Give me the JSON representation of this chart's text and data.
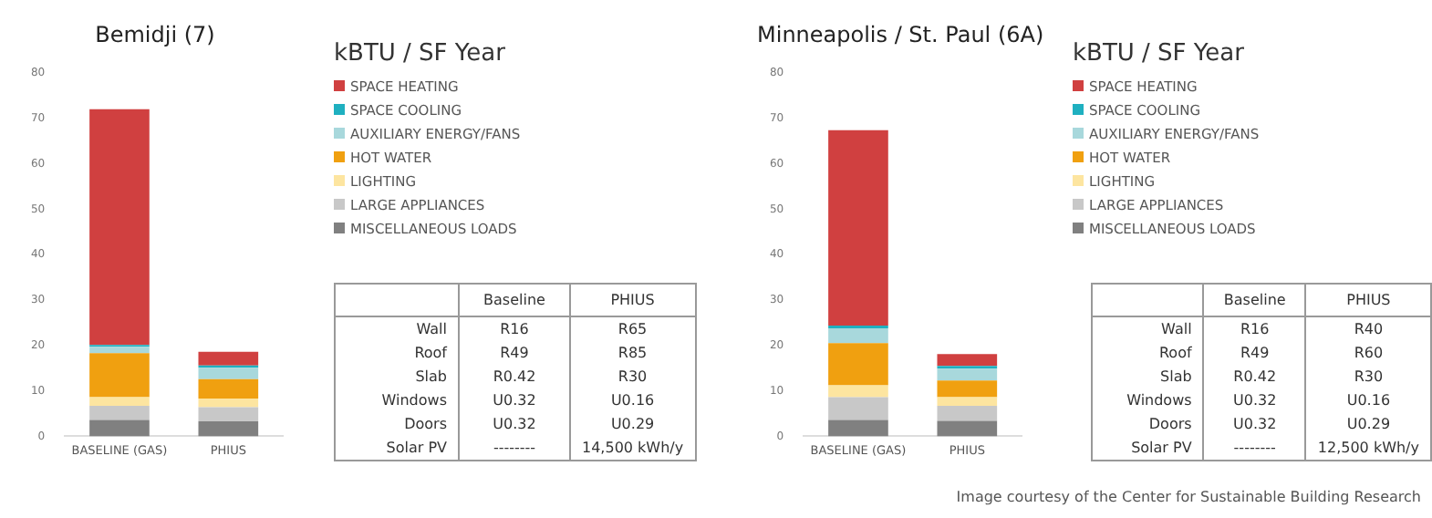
{
  "chart_data": [
    {
      "type": "bar",
      "title": "Bemidji (7)",
      "categories": [
        "BASELINE (GAS)",
        "PHIUS"
      ],
      "stacked": true,
      "legend": "right",
      "legend_title": "kBTU / SF Year",
      "grid": false,
      "ylim": [
        0,
        80
      ],
      "yticks": [
        0,
        10,
        20,
        30,
        40,
        50,
        60,
        70,
        80
      ],
      "series": [
        {
          "name": "MISCELLANEOUS LOADS",
          "color": "#808080",
          "values": [
            3.6,
            3.3
          ]
        },
        {
          "name": "LARGE APPLIANCES",
          "color": "#c8c8c8",
          "values": [
            3.1,
            3.1
          ]
        },
        {
          "name": "LIGHTING",
          "color": "#fde5a0",
          "values": [
            1.9,
            1.9
          ]
        },
        {
          "name": "HOT WATER",
          "color": "#f0a010",
          "values": [
            9.7,
            4.3
          ]
        },
        {
          "name": "AUXILIARY ENERGY/FANS",
          "color": "#a8d8dc",
          "values": [
            1.4,
            2.5
          ]
        },
        {
          "name": "SPACE COOLING",
          "color": "#1fb0c0",
          "values": [
            0.4,
            0.5
          ]
        },
        {
          "name": "SPACE HEATING",
          "color": "#d04040",
          "values": [
            51.9,
            3.0
          ]
        }
      ]
    },
    {
      "type": "other",
      "categories": [
        "Baseline",
        "PHIUS"
      ],
      "y_categories": [
        "Wall",
        "Roof",
        "Slab",
        "Windows",
        "Doors",
        "Solar PV"
      ],
      "cell_labels": [
        [
          "R16",
          "R65"
        ],
        [
          "R49",
          "R85"
        ],
        [
          "R0.42",
          "R30"
        ],
        [
          "U0.32",
          "U0.16"
        ],
        [
          "U0.32",
          "U0.29"
        ],
        [
          "--------",
          "14,500 kWh/y"
        ]
      ]
    },
    {
      "type": "bar",
      "title": "Minneapolis / St. Paul (6A)",
      "categories": [
        "BASELINE (GAS)",
        "PHIUS"
      ],
      "stacked": true,
      "legend": "right",
      "legend_title": "kBTU / SF Year",
      "grid": false,
      "ylim": [
        0,
        80
      ],
      "yticks": [
        0,
        10,
        20,
        30,
        40,
        50,
        60,
        70,
        80
      ],
      "series": [
        {
          "name": "MISCELLANEOUS LOADS",
          "color": "#808080",
          "values": [
            3.6,
            3.4
          ]
        },
        {
          "name": "LARGE APPLIANCES",
          "color": "#c8c8c8",
          "values": [
            5.0,
            3.3
          ]
        },
        {
          "name": "LIGHTING",
          "color": "#fde5a0",
          "values": [
            2.6,
            1.9
          ]
        },
        {
          "name": "HOT WATER",
          "color": "#f0a010",
          "values": [
            9.3,
            3.7
          ]
        },
        {
          "name": "AUXILIARY ENERGY/FANS",
          "color": "#a8d8dc",
          "values": [
            3.3,
            2.6
          ]
        },
        {
          "name": "SPACE COOLING",
          "color": "#1fb0c0",
          "values": [
            0.6,
            0.6
          ]
        },
        {
          "name": "SPACE HEATING",
          "color": "#d04040",
          "values": [
            43.0,
            2.6
          ]
        }
      ]
    },
    {
      "type": "other",
      "categories": [
        "Baseline",
        "PHIUS"
      ],
      "y_categories": [
        "Wall",
        "Roof",
        "Slab",
        "Windows",
        "Doors",
        "Solar PV"
      ],
      "cell_labels": [
        [
          "R16",
          "R40"
        ],
        [
          "R49",
          "R60"
        ],
        [
          "R0.42",
          "R30"
        ],
        [
          "U0.32",
          "U0.16"
        ],
        [
          "U0.32",
          "U0.29"
        ],
        [
          "--------",
          "12,500 kWh/y"
        ]
      ],
      "annotations": [
        "Image courtesy of the Center for Sustainable Building Research"
      ]
    }
  ]
}
